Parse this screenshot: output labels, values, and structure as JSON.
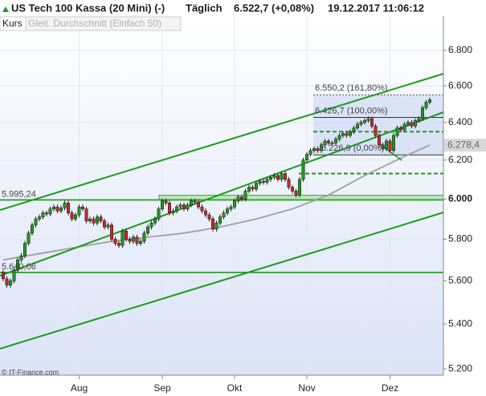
{
  "chart_data": {
    "type": "candlestick",
    "title": "US Tech 100 Kassa (20 Mini) (-)",
    "interval": "Täglich",
    "quote": "6.522,7 (+0,08%)",
    "timestamp": "19.12.2017 11:06:12",
    "legend": [
      "Kurs",
      "Gleit. Durchschnitt (Einfach 50)"
    ],
    "source": "© IT-Finance.com",
    "log_scale": true,
    "grid": true,
    "up_color": "#1f9e1f",
    "down_color": "#d32626",
    "ylim": [
      5176,
      7000
    ],
    "yticks": [
      {
        "value": 5200,
        "label": "5.200"
      },
      {
        "value": 5400,
        "label": "5.400"
      },
      {
        "value": 5600,
        "label": "5.600"
      },
      {
        "value": 5800,
        "label": "5.800"
      },
      {
        "value": 6000,
        "label": "6.000"
      },
      {
        "value": 6200,
        "label": "6.200"
      },
      {
        "value": 6400,
        "label": "6.400"
      },
      {
        "value": 6600,
        "label": "6.600"
      },
      {
        "value": 6800,
        "label": "6.800"
      }
    ],
    "categories": [
      null,
      null,
      null,
      null,
      null,
      null,
      null,
      null,
      null,
      null,
      null,
      null,
      null,
      null,
      null,
      null,
      null,
      null,
      null,
      null,
      null,
      "Aug",
      null,
      null,
      null,
      null,
      null,
      null,
      null,
      null,
      null,
      null,
      null,
      null,
      null,
      null,
      null,
      null,
      null,
      null,
      null,
      null,
      null,
      null,
      "Sep",
      null,
      null,
      null,
      null,
      null,
      null,
      null,
      null,
      null,
      null,
      null,
      null,
      null,
      null,
      null,
      null,
      null,
      null,
      null,
      "Okt",
      null,
      null,
      null,
      null,
      null,
      null,
      null,
      null,
      null,
      null,
      null,
      null,
      null,
      null,
      null,
      null,
      null,
      null,
      null,
      "Nov",
      null,
      null,
      null,
      null,
      null,
      null,
      null,
      null,
      null,
      null,
      null,
      null,
      null,
      null,
      null,
      null,
      null,
      null,
      null,
      null,
      null,
      null,
      "Dez",
      null,
      null,
      null,
      null,
      null,
      null,
      null,
      null,
      null,
      null,
      null
    ],
    "open": [
      5640,
      5610,
      5580,
      5600,
      5650,
      5700,
      5720,
      5780,
      5830,
      5870,
      5900,
      5910,
      5930,
      5925,
      5950,
      5960,
      5940,
      5955,
      5980,
      5930,
      5900,
      5920,
      5960,
      5950,
      5890,
      5900,
      5880,
      5910,
      5890,
      5860,
      5870,
      5800,
      5780,
      5770,
      5840,
      5800,
      5790,
      5810,
      5780,
      5790,
      5830,
      5860,
      5880,
      5900,
      5950,
      5990,
      5980,
      5930,
      5940,
      5960,
      5970,
      5950,
      5970,
      5990,
      5985,
      5960,
      5940,
      5920,
      5900,
      5850,
      5880,
      5910,
      5930,
      5950,
      5960,
      5990,
      6010,
      6000,
      6040,
      6060,
      6050,
      6080,
      6090,
      6085,
      6100,
      6110,
      6120,
      6100,
      6130,
      6100,
      6060,
      6040,
      6020,
      6100,
      6200,
      6230,
      6250,
      6260,
      6250,
      6280,
      6300,
      6290,
      6290,
      6310,
      6330,
      6340,
      6330,
      6350,
      6370,
      6390,
      6400,
      6410,
      6420,
      6380,
      6330,
      6280,
      6260,
      6300,
      6250,
      6330,
      6370,
      6360,
      6390,
      6400,
      6380,
      6410,
      6420,
      6480,
      6510
    ],
    "high": [
      5652,
      5622,
      5612,
      5662,
      5712,
      5732,
      5792,
      5842,
      5882,
      5912,
      5922,
      5942,
      5942,
      5962,
      5972,
      5972,
      5967,
      5992,
      5992,
      5942,
      5932,
      5972,
      5972,
      5962,
      5912,
      5912,
      5922,
      5922,
      5902,
      5882,
      5882,
      5812,
      5792,
      5852,
      5852,
      5812,
      5822,
      5822,
      5802,
      5842,
      5872,
      5892,
      5912,
      5962,
      6002,
      6002,
      5992,
      5952,
      5972,
      5982,
      5982,
      5982,
      6002,
      6002,
      5997,
      5972,
      5952,
      5932,
      5912,
      5892,
      5922,
      5942,
      5962,
      5972,
      6002,
      6022,
      6022,
      6052,
      6072,
      6072,
      6092,
      6102,
      6102,
      6112,
      6122,
      6132,
      6132,
      6142,
      6142,
      6112,
      6072,
      6052,
      6112,
      6212,
      6242,
      6262,
      6272,
      6272,
      6292,
      6312,
      6312,
      6302,
      6322,
      6342,
      6352,
      6352,
      6362,
      6382,
      6402,
      6412,
      6422,
      6432,
      6432,
      6392,
      6342,
      6292,
      6312,
      6312,
      6342,
      6382,
      6382,
      6402,
      6412,
      6412,
      6422,
      6432,
      6492,
      6522,
      6535
    ],
    "low": [
      5598,
      5568,
      5568,
      5588,
      5638,
      5688,
      5708,
      5768,
      5818,
      5858,
      5888,
      5898,
      5913,
      5913,
      5938,
      5928,
      5928,
      5943,
      5918,
      5888,
      5888,
      5908,
      5938,
      5878,
      5878,
      5868,
      5868,
      5878,
      5848,
      5848,
      5788,
      5768,
      5758,
      5758,
      5788,
      5778,
      5778,
      5768,
      5768,
      5778,
      5818,
      5848,
      5868,
      5888,
      5938,
      5968,
      5918,
      5918,
      5928,
      5948,
      5938,
      5938,
      5958,
      5973,
      5948,
      5928,
      5908,
      5888,
      5838,
      5838,
      5868,
      5898,
      5918,
      5938,
      5948,
      5978,
      5988,
      5988,
      6028,
      6038,
      6038,
      6068,
      6073,
      6073,
      6088,
      6098,
      6088,
      6088,
      6088,
      6048,
      6028,
      6008,
      6008,
      6088,
      6188,
      6218,
      6238,
      6238,
      6238,
      6268,
      6278,
      6278,
      6278,
      6298,
      6318,
      6318,
      6318,
      6338,
      6358,
      6378,
      6388,
      6398,
      6368,
      6318,
      6268,
      6248,
      6248,
      6238,
      6238,
      6318,
      6348,
      6348,
      6378,
      6368,
      6368,
      6398,
      6408,
      6468,
      6498
    ],
    "close": [
      5610,
      5580,
      5600,
      5650,
      5700,
      5720,
      5780,
      5830,
      5870,
      5900,
      5910,
      5930,
      5925,
      5950,
      5960,
      5940,
      5955,
      5980,
      5930,
      5900,
      5920,
      5960,
      5950,
      5890,
      5900,
      5880,
      5910,
      5890,
      5860,
      5870,
      5800,
      5780,
      5770,
      5840,
      5800,
      5790,
      5810,
      5780,
      5790,
      5830,
      5860,
      5880,
      5900,
      5950,
      5990,
      5980,
      5930,
      5940,
      5960,
      5970,
      5950,
      5970,
      5990,
      5985,
      5960,
      5940,
      5920,
      5900,
      5850,
      5880,
      5910,
      5930,
      5950,
      5960,
      5990,
      6010,
      6000,
      6040,
      6060,
      6050,
      6080,
      6090,
      6085,
      6100,
      6110,
      6120,
      6100,
      6130,
      6100,
      6060,
      6040,
      6020,
      6100,
      6200,
      6230,
      6250,
      6260,
      6250,
      6280,
      6300,
      6290,
      6290,
      6310,
      6330,
      6340,
      6330,
      6350,
      6370,
      6390,
      6400,
      6410,
      6420,
      6380,
      6330,
      6280,
      6260,
      6300,
      6250,
      6330,
      6370,
      6360,
      6390,
      6400,
      6380,
      6410,
      6420,
      6480,
      6510,
      6523
    ],
    "moving_average": {
      "color": "#a0a0a0",
      "x": [
        0,
        10,
        20,
        30,
        40,
        50,
        60,
        70,
        80,
        90,
        100,
        110,
        118
      ],
      "values": [
        5700,
        5730,
        5760,
        5790,
        5810,
        5830,
        5860,
        5900,
        5950,
        6020,
        6120,
        6210,
        6278.4
      ]
    },
    "ma_last": {
      "value": 6278.4,
      "label": "6.278,4"
    },
    "levels": [
      {
        "value": 5995.24,
        "label": "5.995,24"
      },
      {
        "value": 5640.06,
        "label": "5.640,06"
      }
    ],
    "fibonacci": [
      {
        "value": 6550.2,
        "label": "6.550,2 (161,80%)"
      },
      {
        "value": 6426.7,
        "label": "6.426,7 (100,00%)"
      },
      {
        "value": 6226.9,
        "label": "6.226,9 (0,00%)"
      }
    ],
    "support_lines": [
      6350,
      6130
    ]
  }
}
